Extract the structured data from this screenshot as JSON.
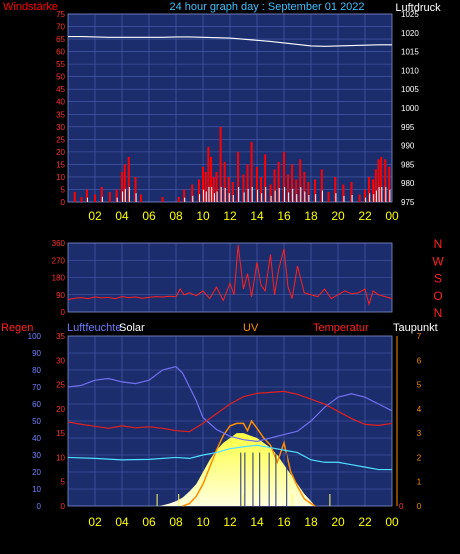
{
  "header": {
    "left_label": "Windstärke",
    "title": "24 hour graph day : September 01 2022",
    "right_label": "Luftdruck"
  },
  "x_ticks": [
    "02",
    "04",
    "06",
    "08",
    "10",
    "12",
    "14",
    "16",
    "18",
    "20",
    "22",
    "00"
  ],
  "panel3_labels": {
    "regen": "Regen",
    "luftfeuchte": "Luftfeuchte",
    "solar": "Solar",
    "uv": "UV",
    "temperatur": "Temperatur",
    "taupunkt": "Taupunkt"
  },
  "colors": {
    "plot_bg": "#1c2d6e",
    "grid": "#4a5fb0",
    "wind": "#ff0000",
    "gust": "#ffffff",
    "pressure": "#ffffff",
    "direction": "#ff2020",
    "humidity": "#7070f0",
    "temperature": "#e02020",
    "dewpoint": "#50e0ff",
    "solar": "#ffff60",
    "uv": "#ff8c00",
    "title": "#40c0ff",
    "tick_yellow": "#ffff00"
  },
  "chart_data": [
    {
      "type": "line",
      "title": "24 hour graph day : September 01 2022",
      "ylabel": "Windstärke",
      "y2label": "Luftdruck",
      "ylim": [
        0,
        75
      ],
      "y_ticks": [
        "0",
        "5",
        "10",
        "15",
        "20",
        "25",
        "30",
        "35",
        "40",
        "45",
        "50",
        "55",
        "60",
        "65",
        "70",
        "75"
      ],
      "y2lim": [
        975,
        1025
      ],
      "y2_ticks": [
        "975",
        "980",
        "985",
        "990",
        "995",
        "1000",
        "1005",
        "1010",
        "1015",
        "1020",
        "1025"
      ],
      "series": [
        {
          "name": "Luftdruck",
          "axis": "right",
          "x": [
            0,
            1,
            2,
            3,
            4,
            5,
            6,
            7,
            8,
            9,
            10,
            11,
            12,
            13,
            14,
            15,
            16,
            17,
            18,
            19,
            20,
            21,
            22,
            23,
            24
          ],
          "values": [
            1019.0,
            1019.0,
            1018.9,
            1018.8,
            1018.8,
            1018.8,
            1018.8,
            1018.8,
            1018.9,
            1018.9,
            1018.8,
            1018.7,
            1018.6,
            1018.3,
            1018.0,
            1017.7,
            1017.3,
            1016.9,
            1016.5,
            1016.4,
            1016.5,
            1016.6,
            1016.7,
            1016.8,
            1016.8
          ]
        },
        {
          "name": "Windstärke",
          "axis": "left",
          "style": "bars",
          "x": [
            0.5,
            1.0,
            1.4,
            2.0,
            2.5,
            3.1,
            3.6,
            4.0,
            4.2,
            4.5,
            5.0,
            5.4,
            7.0,
            8.2,
            8.6,
            9.2,
            9.7,
            10.0,
            10.2,
            10.4,
            10.6,
            10.8,
            11.0,
            11.3,
            11.6,
            11.9,
            12.2,
            12.6,
            13.0,
            13.3,
            13.6,
            14.0,
            14.3,
            14.6,
            15.0,
            15.3,
            15.6,
            16.0,
            16.3,
            16.6,
            16.9,
            17.2,
            17.5,
            17.8,
            18.3,
            18.8,
            19.3,
            19.8,
            20.4,
            21.0,
            21.6,
            22.0,
            22.3,
            22.6,
            22.8,
            23.0,
            23.2,
            23.5,
            23.8
          ],
          "values": [
            4,
            2,
            5,
            3,
            6,
            4,
            5,
            12,
            15,
            18,
            10,
            3,
            2,
            2,
            5,
            7,
            9,
            14,
            12,
            22,
            18,
            10,
            12,
            30,
            16,
            10,
            8,
            20,
            11,
            15,
            24,
            14,
            10,
            19,
            7,
            13,
            16,
            20,
            11,
            15,
            9,
            17,
            12,
            8,
            9,
            13,
            4,
            10,
            7,
            8,
            3,
            5,
            10,
            9,
            13,
            17,
            18,
            17,
            14
          ]
        }
      ]
    },
    {
      "type": "line",
      "y_ticks": [
        "0",
        "90",
        "180",
        "270",
        "360"
      ],
      "ylim": [
        0,
        360
      ],
      "y2_ticks": [
        "N",
        "W",
        "S",
        "O",
        "N"
      ],
      "series": [
        {
          "name": "Windrichtung",
          "x": [
            0,
            0.5,
            1,
            1.5,
            2,
            2.5,
            3,
            3.5,
            4,
            4.5,
            5,
            5.5,
            6,
            6.5,
            7,
            7.5,
            8,
            8.3,
            8.6,
            9,
            9.5,
            10,
            10.5,
            11,
            11.5,
            12,
            12.3,
            12.6,
            13,
            13.3,
            13.6,
            14,
            14.3,
            14.6,
            15,
            15.3,
            15.6,
            16,
            16.3,
            16.6,
            17,
            17.5,
            18,
            18.5,
            19,
            19.5,
            20,
            20.5,
            21,
            21.5,
            22,
            22.3,
            22.6,
            23,
            23.5,
            24
          ],
          "values": [
            65,
            72,
            75,
            70,
            78,
            74,
            76,
            70,
            80,
            75,
            78,
            72,
            76,
            80,
            78,
            82,
            80,
            120,
            90,
            100,
            85,
            110,
            70,
            130,
            60,
            150,
            90,
            350,
            120,
            200,
            80,
            260,
            140,
            110,
            300,
            90,
            220,
            330,
            130,
            70,
            240,
            100,
            90,
            80,
            120,
            70,
            90,
            110,
            95,
            100,
            120,
            40,
            110,
            90,
            80,
            70
          ]
        }
      ]
    },
    {
      "type": "area",
      "ylabel": "Regen",
      "y_ticks": [
        "0",
        "10",
        "20",
        "30",
        "40",
        "50",
        "60",
        "70",
        "80",
        "90",
        "100"
      ],
      "ylim": [
        0,
        100
      ],
      "y2_ticks": [
        "0",
        "5",
        "10",
        "15",
        "20",
        "25",
        "30",
        "35"
      ],
      "y2lim": [
        0,
        35
      ],
      "y3_ticks": [
        "0",
        "1",
        "2",
        "3",
        "4",
        "5",
        "6",
        "7"
      ],
      "y3lim": [
        0,
        7
      ],
      "x_ticks": [
        "02",
        "04",
        "06",
        "08",
        "10",
        "12",
        "14",
        "16",
        "18",
        "20",
        "22",
        "00"
      ],
      "series": [
        {
          "name": "Luftfeuchte",
          "x": [
            0,
            1,
            2,
            3,
            4,
            5,
            6,
            7,
            8,
            8.5,
            9,
            9.5,
            10,
            11,
            12,
            13,
            14,
            15,
            16,
            17,
            18,
            19,
            20,
            21,
            22,
            23,
            24
          ],
          "values": [
            70,
            71,
            74,
            75,
            73,
            72,
            74,
            80,
            82,
            78,
            70,
            62,
            52,
            45,
            41,
            39,
            38,
            40,
            42,
            44,
            50,
            58,
            64,
            66,
            64,
            60,
            56
          ]
        },
        {
          "name": "Temperatur",
          "x": [
            0,
            1,
            2,
            3,
            4,
            5,
            6,
            7,
            8,
            9,
            10,
            11,
            12,
            13,
            14,
            15,
            16,
            17,
            18,
            19,
            20,
            21,
            22,
            23,
            24
          ],
          "values": [
            17.3,
            16.8,
            16.4,
            16.0,
            16.5,
            16.1,
            16.3,
            16.0,
            15.5,
            15.3,
            17.0,
            19.0,
            21.0,
            22.5,
            23.2,
            23.4,
            23.6,
            23.0,
            22.0,
            21.0,
            19.5,
            18.0,
            16.8,
            16.6,
            17.0
          ]
        },
        {
          "name": "Taupunkt",
          "x": [
            0,
            2,
            4,
            6,
            8,
            9,
            10,
            11,
            12,
            13,
            14,
            15,
            16,
            17,
            18,
            19,
            20,
            21,
            22,
            23,
            24
          ],
          "values": [
            10.0,
            9.8,
            9.5,
            9.6,
            10.0,
            9.8,
            10.5,
            11.0,
            11.8,
            12.2,
            12.5,
            12.0,
            11.5,
            11.0,
            9.5,
            9.0,
            9.0,
            8.5,
            8.0,
            7.5,
            7.5
          ]
        },
        {
          "name": "Solar",
          "x": [
            6.8,
            7.5,
            8,
            8.5,
            9,
            9.5,
            10,
            10.5,
            11,
            11.5,
            12,
            12.5,
            13,
            13.5,
            14,
            14.5,
            15,
            15.5,
            16,
            16.5,
            17,
            17.5,
            18,
            18.3
          ],
          "values": [
            0,
            0.1,
            0.2,
            0.35,
            0.6,
            0.9,
            1.4,
            1.9,
            2.3,
            2.6,
            2.8,
            3.0,
            3.0,
            2.9,
            2.8,
            2.6,
            2.4,
            2.1,
            1.7,
            1.3,
            0.9,
            0.5,
            0.2,
            0
          ]
        },
        {
          "name": "UV",
          "x": [
            8.5,
            9,
            9.5,
            10,
            10.5,
            11,
            11.5,
            12,
            12.5,
            13,
            13.3,
            13.6,
            14,
            14.5,
            15,
            15.5,
            16,
            16.5,
            17,
            17.5,
            18,
            18.3
          ],
          "values": [
            0,
            0.1,
            0.4,
            0.9,
            1.6,
            2.3,
            2.9,
            3.3,
            3.4,
            3.4,
            3.1,
            3.5,
            3.2,
            2.8,
            2.5,
            1.8,
            2.6,
            1.4,
            0.8,
            0.3,
            0.1,
            0
          ]
        }
      ]
    }
  ]
}
